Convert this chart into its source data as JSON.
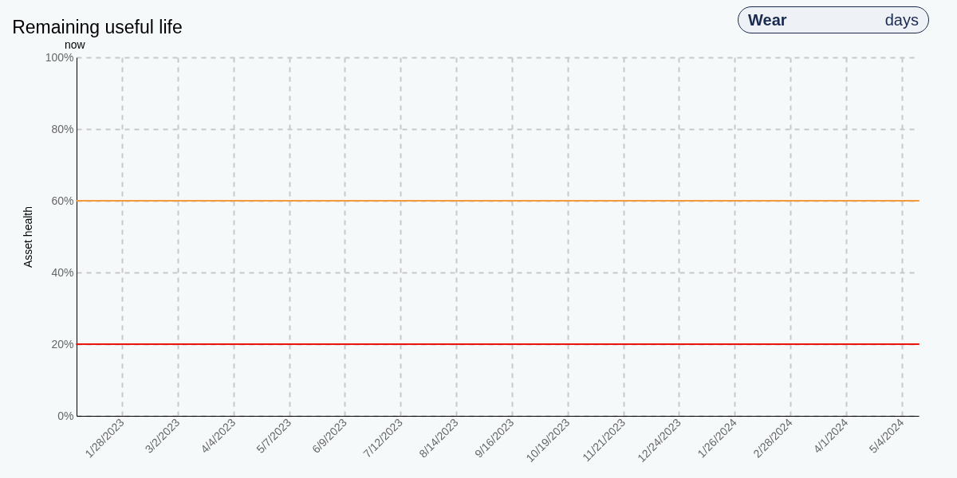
{
  "chart_data": {
    "type": "line",
    "title": "Remaining useful life",
    "ylabel": "Asset health",
    "annotations": [
      "Wear",
      "days",
      "now"
    ],
    "xlim": [
      "2023-01-01",
      "2024-05-14"
    ],
    "xticks": [
      {
        "value": "2023-01-28",
        "label": "1/28/2023"
      },
      {
        "value": "2023-03-02",
        "label": "3/2/2023"
      },
      {
        "value": "2023-04-04",
        "label": "4/4/2023"
      },
      {
        "value": "2023-05-07",
        "label": "5/7/2023"
      },
      {
        "value": "2023-06-09",
        "label": "6/9/2023"
      },
      {
        "value": "2023-07-12",
        "label": "7/12/2023"
      },
      {
        "value": "2023-08-14",
        "label": "8/14/2023"
      },
      {
        "value": "2023-09-16",
        "label": "9/16/2023"
      },
      {
        "value": "2023-10-19",
        "label": "10/19/2023"
      },
      {
        "value": "2023-11-21",
        "label": "11/21/2023"
      },
      {
        "value": "2023-12-24",
        "label": "12/24/2023"
      },
      {
        "value": "2024-01-26",
        "label": "1/26/2024"
      },
      {
        "value": "2024-02-28",
        "label": "2/28/2024"
      },
      {
        "value": "2024-04-01",
        "label": "4/1/2024"
      },
      {
        "value": "2024-05-04",
        "label": "5/4/2024"
      }
    ],
    "ylim": [
      0,
      100
    ],
    "yticks": [
      {
        "value": 0,
        "label": "0%"
      },
      {
        "value": 20,
        "label": "20%"
      },
      {
        "value": 40,
        "label": "40%"
      },
      {
        "value": 60,
        "label": "60%"
      },
      {
        "value": 80,
        "label": "80%"
      },
      {
        "value": 100,
        "label": "100%"
      }
    ],
    "grid": true,
    "ref_lines": [
      {
        "axis": "y",
        "value": 60,
        "color": "#f39a3c"
      },
      {
        "axis": "y",
        "value": 20,
        "color": "#ee1111"
      }
    ]
  }
}
